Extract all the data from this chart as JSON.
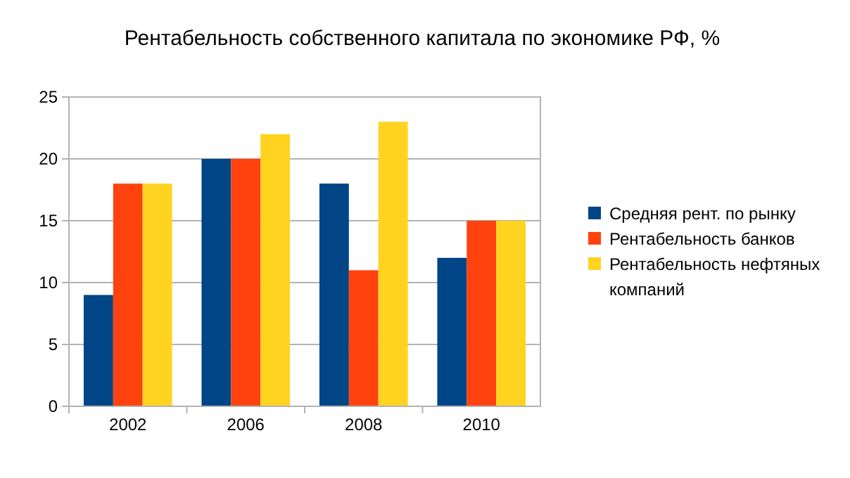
{
  "chart_data": {
    "type": "bar",
    "title": "Рентабельность собственного капитала по экономике РФ, %",
    "categories": [
      "2002",
      "2006",
      "2008",
      "2010"
    ],
    "series": [
      {
        "name": "Средняя рент. по рынку",
        "color": "#004586",
        "values": [
          9,
          20,
          18,
          12
        ]
      },
      {
        "name": "Рентабельность банков",
        "color": "#ff420e",
        "values": [
          18,
          20,
          11,
          15
        ]
      },
      {
        "name": "Рентабельность нефтяных компаний",
        "color": "#ffd320",
        "values": [
          18,
          22,
          23,
          15
        ]
      }
    ],
    "ylim": [
      0,
      25
    ],
    "yticks": [
      0,
      5,
      10,
      15,
      20,
      25
    ],
    "grid": "y",
    "legend": "right"
  }
}
